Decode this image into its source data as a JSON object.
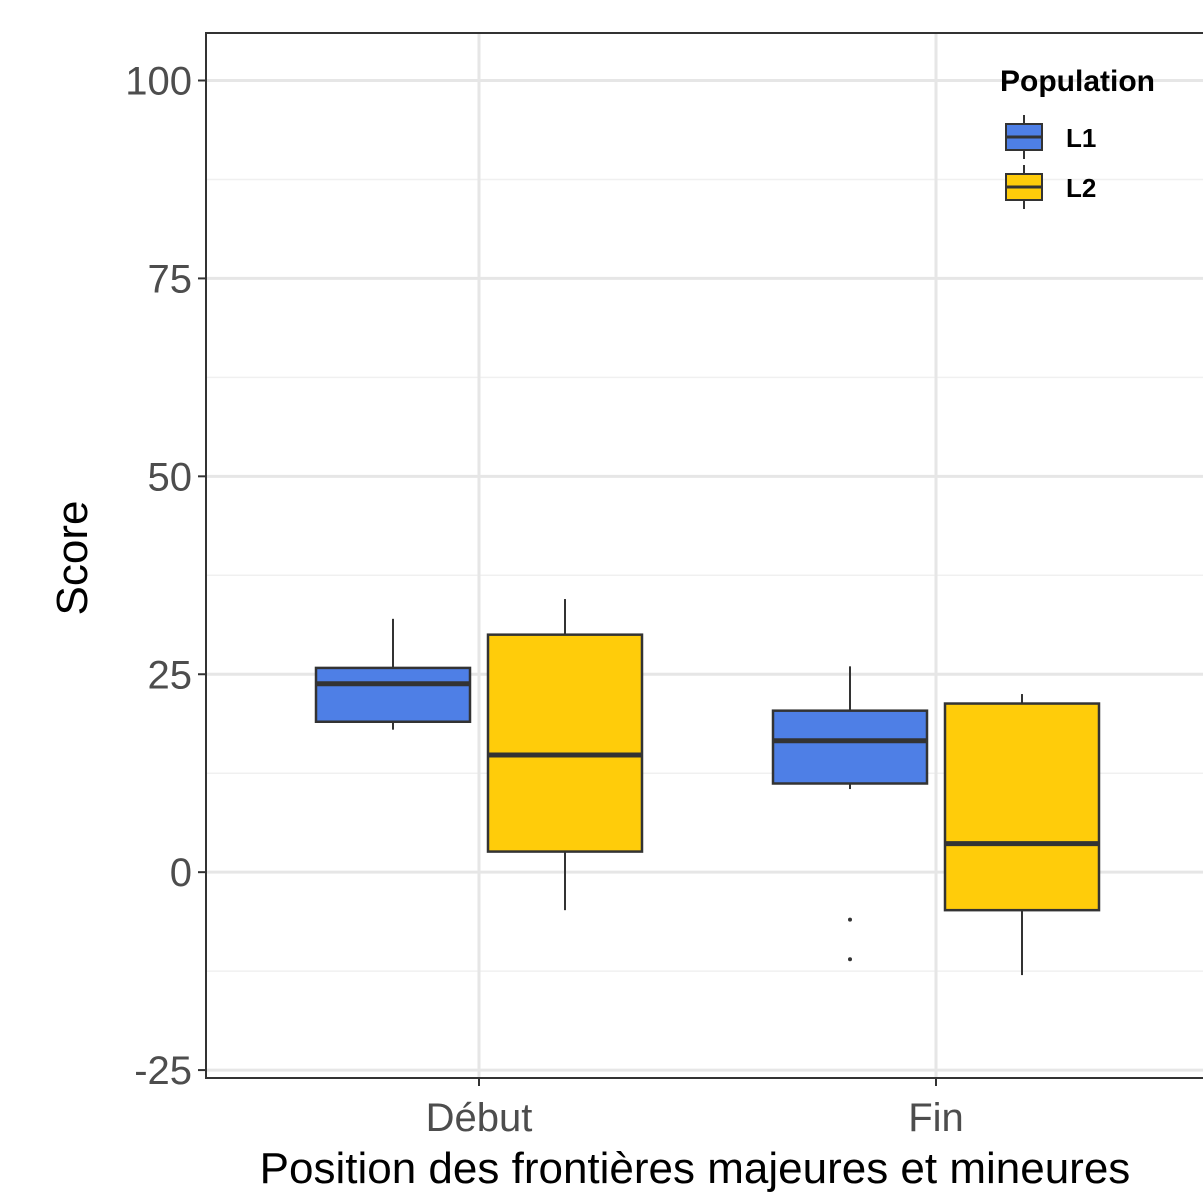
{
  "chart_data": {
    "type": "box",
    "title": "",
    "xlabel": "Position des frontières majeures et mineures",
    "ylabel": "Score",
    "categories": [
      "Début",
      "Fin"
    ],
    "ylim": [
      -26,
      106
    ],
    "yticks": [
      -25,
      0,
      25,
      50,
      75,
      100
    ],
    "ytick_labels": [
      "-25",
      "0",
      "25",
      "50",
      "75",
      "100"
    ],
    "grid": true,
    "legend": {
      "title": "Population",
      "position": "top-right"
    },
    "series": [
      {
        "name": "L1",
        "color": "#4e7fe6",
        "boxes": [
          {
            "category": "Début",
            "whisker_low": 18,
            "q1": 19,
            "median": 23.8,
            "q3": 25.8,
            "whisker_high": 32,
            "outliers": []
          },
          {
            "category": "Fin",
            "whisker_low": 10.5,
            "q1": 11.2,
            "median": 16.6,
            "q3": 20.4,
            "whisker_high": 26,
            "outliers": [
              -6,
              -11
            ]
          }
        ]
      },
      {
        "name": "L2",
        "color": "#ffcc0a",
        "boxes": [
          {
            "category": "Début",
            "whisker_low": -4.8,
            "q1": 2.6,
            "median": 14.8,
            "q3": 30,
            "whisker_high": 34.5,
            "outliers": []
          },
          {
            "category": "Fin",
            "whisker_low": -13,
            "q1": -4.8,
            "median": 3.6,
            "q3": 21.3,
            "whisker_high": 22.5,
            "outliers": []
          }
        ]
      }
    ]
  }
}
